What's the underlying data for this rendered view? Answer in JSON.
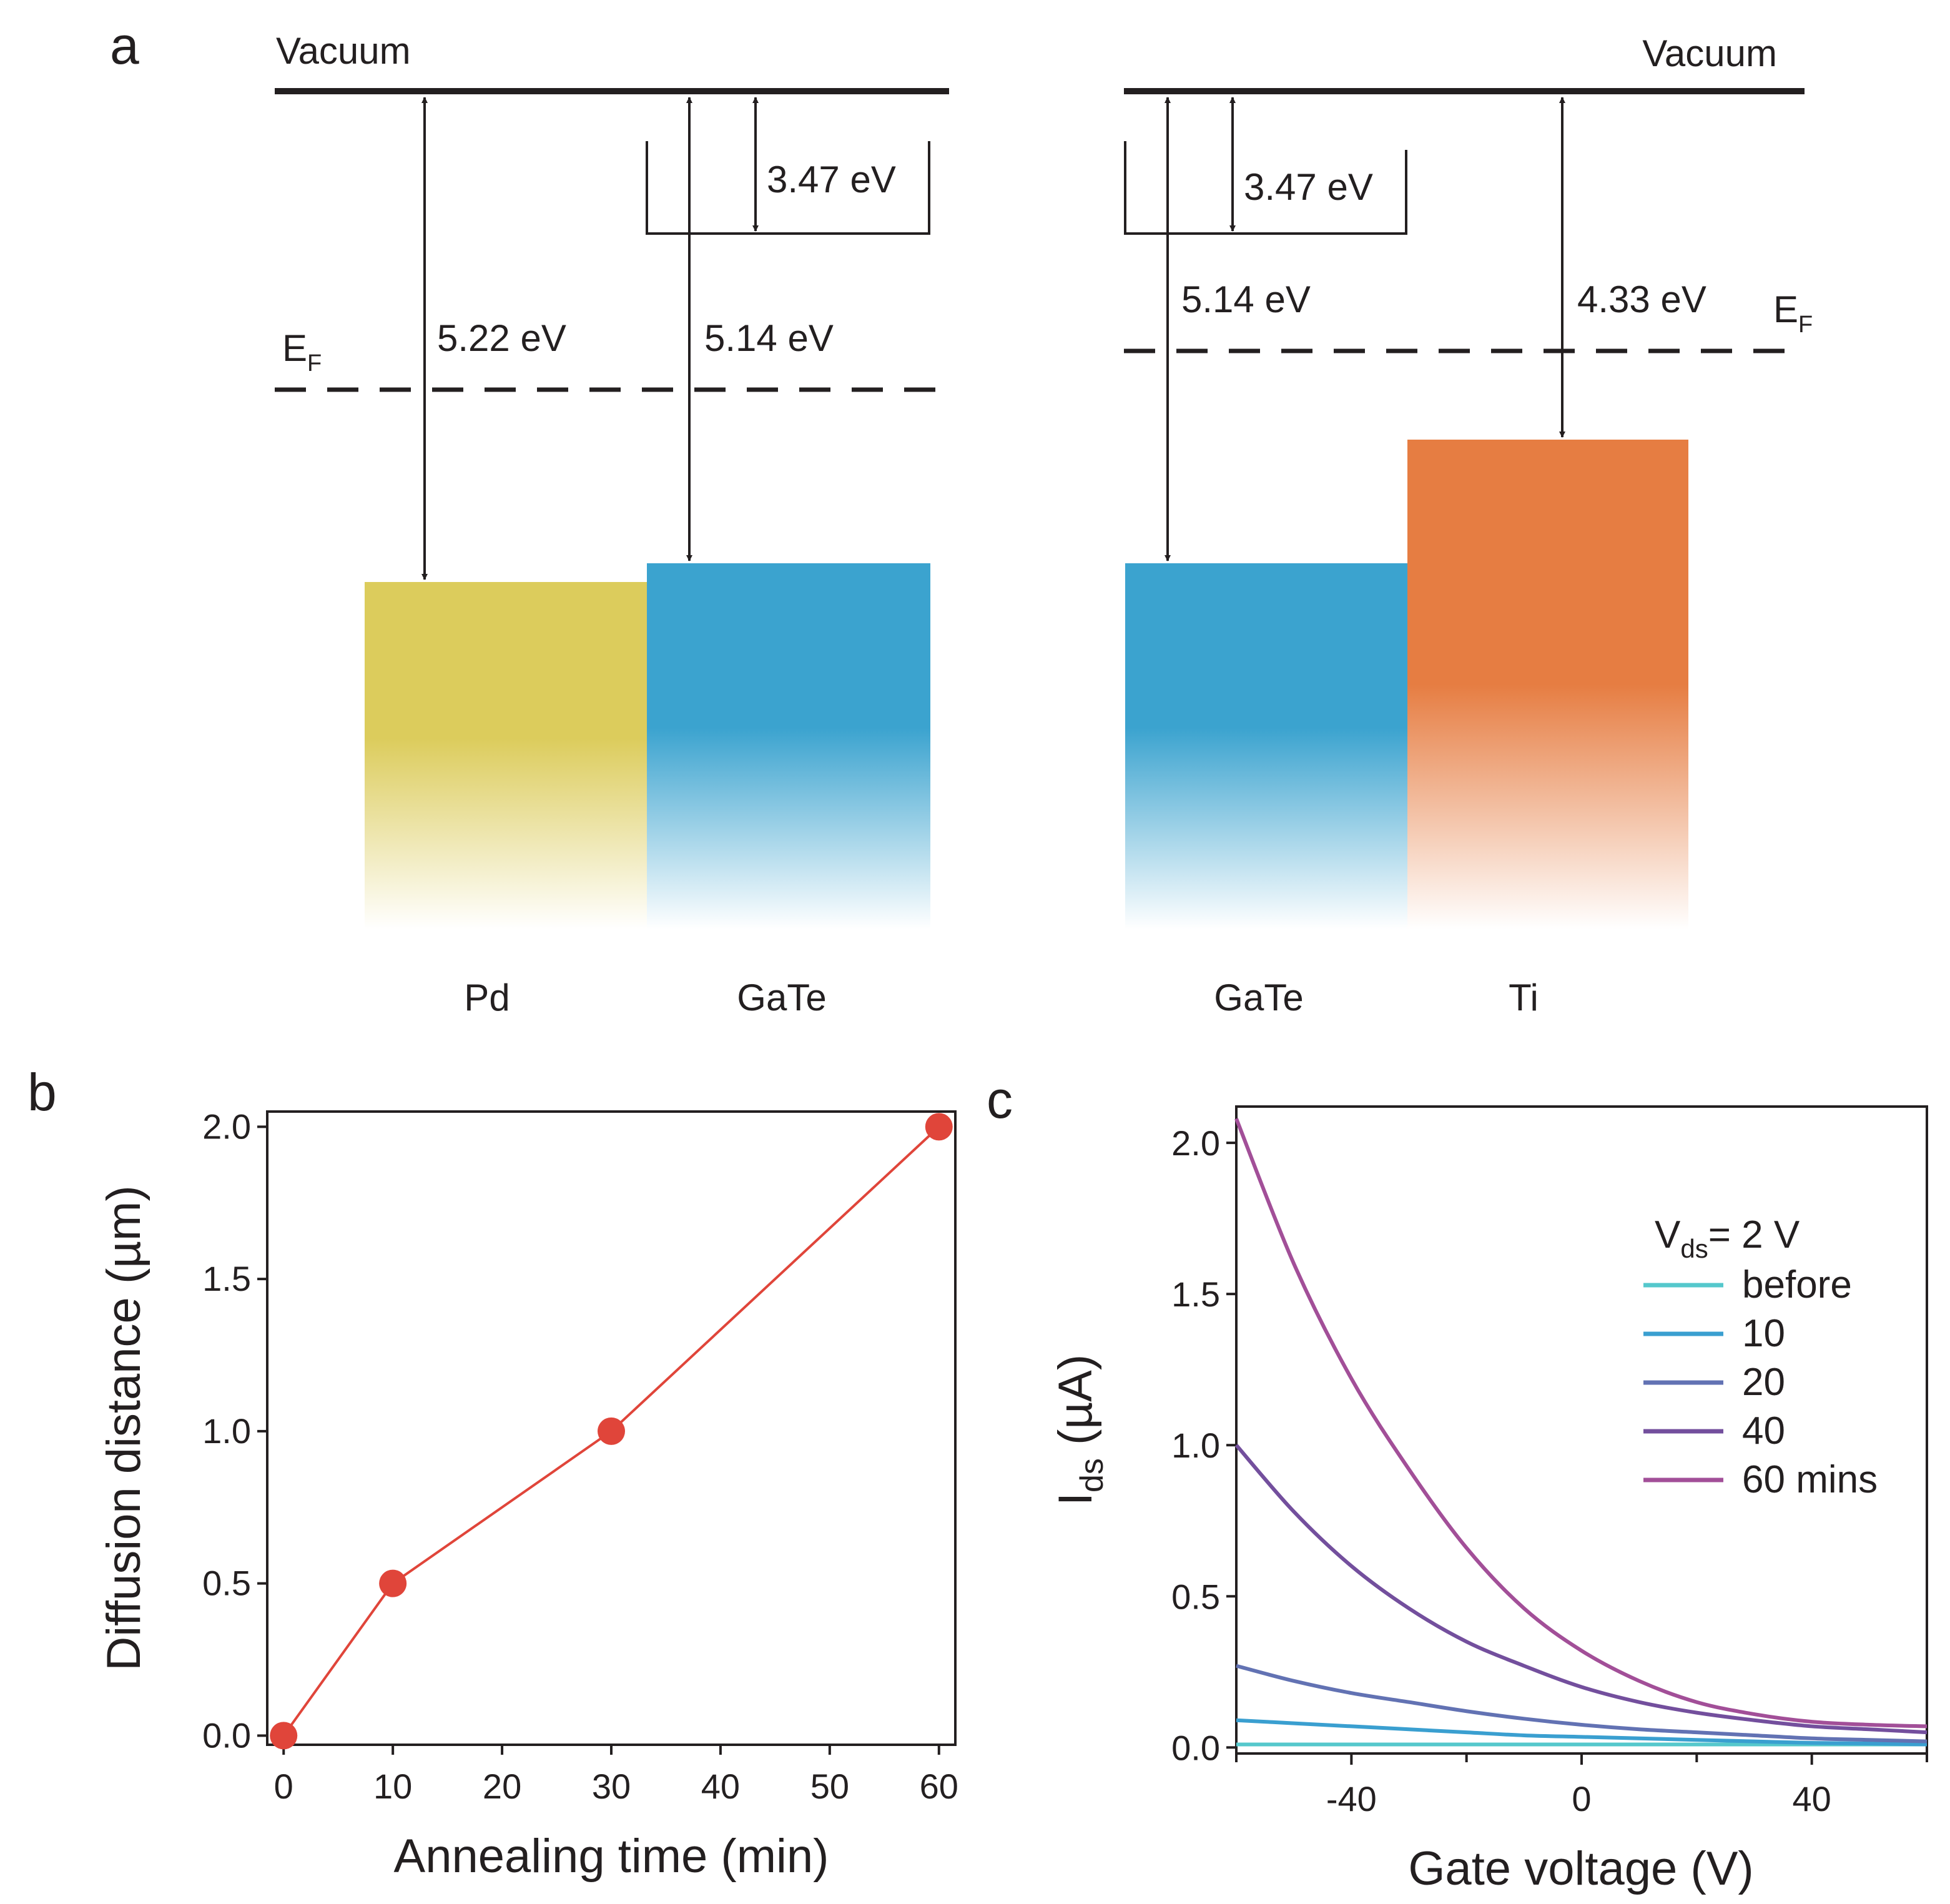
{
  "panel_a": {
    "letter": "a",
    "left": {
      "vacuum_label": "Vacuum",
      "ef_main": "E",
      "ef_sub": "F",
      "energies": {
        "pd_wf": "5.22 eV",
        "gate_wf": "5.14 eV",
        "gate_ea": "3.47 eV"
      },
      "materials": [
        "Pd",
        "GaTe"
      ]
    },
    "right": {
      "vacuum_label": "Vacuum",
      "ef_main": "E",
      "ef_sub": "F",
      "energies": {
        "gate_wf": "5.14 eV",
        "gate_ea": "3.47 eV",
        "ti_wf": "4.33 eV"
      },
      "materials": [
        "GaTe",
        "Ti"
      ]
    },
    "colors": {
      "pd": "#dccc5c",
      "gate": "#3ba3cf",
      "ti": "#e67d42"
    }
  },
  "chart_data": [
    {
      "panel": "b",
      "type": "line",
      "title": "",
      "xlabel": "Annealing time (min)",
      "ylabel": "Diffusion distance (µm)",
      "x": [
        0,
        10,
        30,
        60
      ],
      "y": [
        0.0,
        0.5,
        1.0,
        2.0
      ],
      "xlim": [
        -1.5,
        61.5
      ],
      "ylim": [
        -0.03,
        2.05
      ],
      "xticks": [
        0,
        10,
        20,
        30,
        40,
        50,
        60
      ],
      "yticks": [
        0.0,
        0.5,
        1.0,
        1.5,
        2.0
      ],
      "ytick_labels": [
        "0.0",
        "0.5",
        "1.0",
        "1.5",
        "2.0"
      ],
      "color": "#e0453a",
      "grid": false
    },
    {
      "panel": "c",
      "type": "line",
      "title": "",
      "xlabel": "Gate voltage (V)",
      "ylabel_main": "I",
      "ylabel_sub": "ds",
      "ylabel_unit": " (µA)",
      "xlim": [
        -60,
        60
      ],
      "ylim": [
        -0.02,
        2.12
      ],
      "xticks": [
        -40,
        0,
        40
      ],
      "xtick_labels": [
        "-40",
        "0",
        "40"
      ],
      "minor_xticks": [
        -60,
        -20,
        20,
        60
      ],
      "yticks": [
        0.0,
        0.5,
        1.0,
        1.5,
        2.0
      ],
      "ytick_labels": [
        "0.0",
        "0.5",
        "1.0",
        "1.5",
        "2.0"
      ],
      "legend": {
        "title_main": "V",
        "title_sub": "ds",
        "title_rest": "= 2 V",
        "position": "top-right"
      },
      "x": [
        -60,
        -50,
        -40,
        -30,
        -20,
        -10,
        0,
        10,
        20,
        30,
        40,
        50,
        60
      ],
      "series": [
        {
          "name": "before",
          "color": "#55c8cc",
          "values": [
            0.01,
            0.01,
            0.01,
            0.01,
            0.01,
            0.01,
            0.01,
            0.01,
            0.01,
            0.01,
            0.01,
            0.01,
            0.01
          ]
        },
        {
          "name": "10",
          "color": "#3a9fd0",
          "values": [
            0.09,
            0.08,
            0.07,
            0.06,
            0.05,
            0.04,
            0.035,
            0.03,
            0.025,
            0.02,
            0.015,
            0.013,
            0.01
          ]
        },
        {
          "name": "20",
          "color": "#6272b3",
          "values": [
            0.27,
            0.22,
            0.18,
            0.15,
            0.12,
            0.095,
            0.075,
            0.06,
            0.05,
            0.04,
            0.03,
            0.025,
            0.02
          ]
        },
        {
          "name": "40",
          "color": "#734f9d",
          "values": [
            1.0,
            0.78,
            0.6,
            0.46,
            0.35,
            0.27,
            0.2,
            0.15,
            0.115,
            0.09,
            0.07,
            0.06,
            0.05
          ]
        },
        {
          "name": "60 mins",
          "color": "#a24f98",
          "values": [
            2.08,
            1.6,
            1.22,
            0.92,
            0.66,
            0.46,
            0.32,
            0.22,
            0.15,
            0.11,
            0.085,
            0.075,
            0.07
          ]
        }
      ]
    }
  ]
}
